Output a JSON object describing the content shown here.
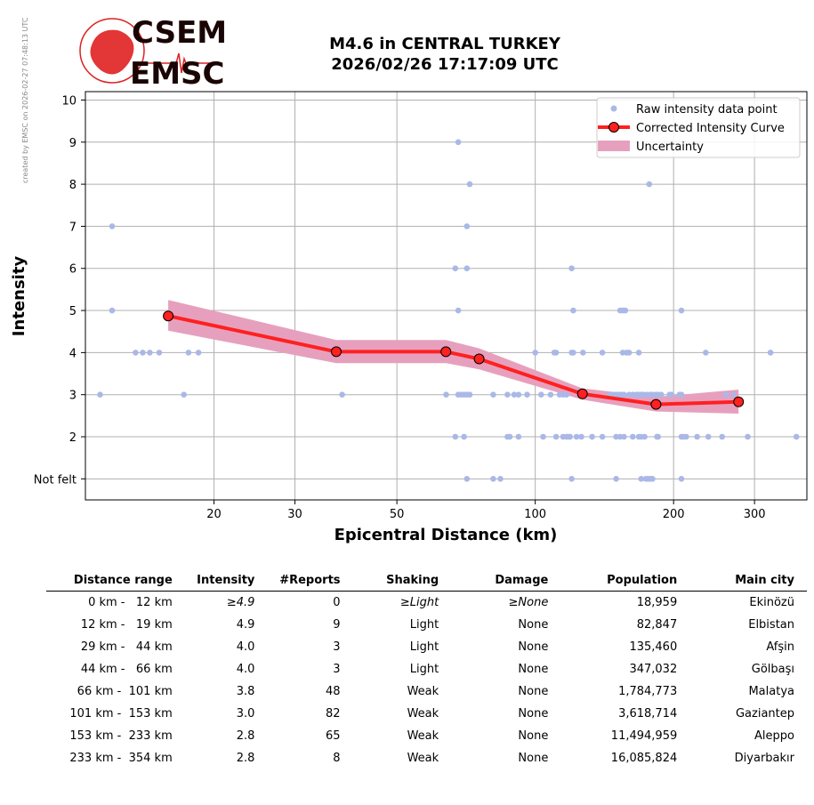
{
  "logo": {
    "line1": "CSEM",
    "line2": "EMSC"
  },
  "title": {
    "line1": "M4.6 in CENTRAL TURKEY",
    "line2": "2026/02/26 17:17:09 UTC"
  },
  "credit": "created by EMSC on 2026-02-27 07:48:13 UTC",
  "colors": {
    "raw": "#aab8e8",
    "curve": "#ff2020",
    "marker": "#ff2020",
    "uncertainty": "#e6a0bd",
    "grid": "#b0b0b0"
  },
  "chart_data": {
    "type": "scatter",
    "xlabel": "Epicentral Distance (km)",
    "ylabel": "Intensity",
    "xscale": "log",
    "xlim": [
      10.5,
      390
    ],
    "ylim": [
      0.5,
      10.2
    ],
    "xticks": [
      20,
      30,
      50,
      100,
      200,
      300
    ],
    "yticks": [
      {
        "value": 1,
        "label": "Not felt"
      },
      {
        "value": 2,
        "label": "2"
      },
      {
        "value": 3,
        "label": "3"
      },
      {
        "value": 4,
        "label": "4"
      },
      {
        "value": 5,
        "label": "5"
      },
      {
        "value": 6,
        "label": "6"
      },
      {
        "value": 7,
        "label": "7"
      },
      {
        "value": 8,
        "label": "8"
      },
      {
        "value": 9,
        "label": "9"
      },
      {
        "value": 10,
        "label": "10"
      }
    ],
    "grid": true,
    "legend_position": "top-right",
    "legend": {
      "raw": "Raw intensity data point",
      "curve": "Corrected Intensity Curve",
      "band": "Uncertainty"
    },
    "raw_points": [
      [
        11.3,
        3
      ],
      [
        12.0,
        7
      ],
      [
        12.0,
        5
      ],
      [
        13.5,
        4
      ],
      [
        14.0,
        4
      ],
      [
        14.5,
        4
      ],
      [
        15.2,
        4
      ],
      [
        17.2,
        3
      ],
      [
        17.6,
        4
      ],
      [
        18.5,
        4
      ],
      [
        38.0,
        3
      ],
      [
        64,
        3
      ],
      [
        67,
        2
      ],
      [
        68,
        9
      ],
      [
        68,
        5
      ],
      [
        67,
        6
      ],
      [
        68,
        3
      ],
      [
        69,
        3
      ],
      [
        70,
        3
      ],
      [
        71,
        3
      ],
      [
        72,
        3
      ],
      [
        70,
        2
      ],
      [
        71,
        7
      ],
      [
        71,
        6
      ],
      [
        72,
        8
      ],
      [
        71,
        1
      ],
      [
        81,
        3
      ],
      [
        81,
        1
      ],
      [
        84,
        1
      ],
      [
        87,
        3
      ],
      [
        87,
        2
      ],
      [
        88,
        2
      ],
      [
        90,
        3
      ],
      [
        92,
        3
      ],
      [
        92,
        2
      ],
      [
        96,
        3
      ],
      [
        100,
        4
      ],
      [
        103,
        3
      ],
      [
        104,
        2
      ],
      [
        108,
        3
      ],
      [
        110,
        4
      ],
      [
        111,
        4
      ],
      [
        111,
        2
      ],
      [
        113,
        3
      ],
      [
        115,
        3
      ],
      [
        117,
        3
      ],
      [
        115,
        2
      ],
      [
        117,
        2
      ],
      [
        118,
        2
      ],
      [
        119,
        2
      ],
      [
        120,
        4
      ],
      [
        121,
        4
      ],
      [
        120,
        6
      ],
      [
        121,
        5
      ],
      [
        120,
        1
      ],
      [
        123,
        2
      ],
      [
        125,
        3
      ],
      [
        126,
        2
      ],
      [
        127,
        4
      ],
      [
        133,
        2
      ],
      [
        140,
        4
      ],
      [
        140,
        2
      ],
      [
        145,
        3
      ],
      [
        148,
        3
      ],
      [
        150,
        3
      ],
      [
        152,
        3
      ],
      [
        154,
        3
      ],
      [
        156,
        3
      ],
      [
        150,
        2
      ],
      [
        153,
        2
      ],
      [
        156,
        2
      ],
      [
        153,
        5
      ],
      [
        155,
        5
      ],
      [
        157,
        5
      ],
      [
        155,
        4
      ],
      [
        158,
        4
      ],
      [
        160,
        4
      ],
      [
        150,
        1
      ],
      [
        160,
        3
      ],
      [
        163,
        3
      ],
      [
        166,
        3
      ],
      [
        168,
        3
      ],
      [
        170,
        3
      ],
      [
        172,
        3
      ],
      [
        175,
        3
      ],
      [
        178,
        3
      ],
      [
        163,
        2
      ],
      [
        168,
        2
      ],
      [
        170,
        2
      ],
      [
        173,
        2
      ],
      [
        168,
        4
      ],
      [
        170,
        1
      ],
      [
        174,
        1
      ],
      [
        176,
        1
      ],
      [
        178,
        1
      ],
      [
        180,
        1
      ],
      [
        177,
        8
      ],
      [
        180,
        3
      ],
      [
        183,
        3
      ],
      [
        185,
        3
      ],
      [
        184,
        2
      ],
      [
        185,
        2
      ],
      [
        188,
        3
      ],
      [
        196,
        3
      ],
      [
        198,
        3
      ],
      [
        206,
        3
      ],
      [
        208,
        3
      ],
      [
        208,
        5
      ],
      [
        208,
        2
      ],
      [
        210,
        2
      ],
      [
        213,
        2
      ],
      [
        208,
        1
      ],
      [
        225,
        2
      ],
      [
        235,
        4
      ],
      [
        238,
        2
      ],
      [
        255,
        2
      ],
      [
        260,
        3
      ],
      [
        270,
        3
      ],
      [
        290,
        2
      ],
      [
        325,
        4
      ],
      [
        370,
        2
      ]
    ],
    "curve": [
      [
        15.9,
        4.87
      ],
      [
        36.9,
        4.02
      ],
      [
        63.9,
        4.02
      ],
      [
        75.5,
        3.85
      ],
      [
        126.7,
        3.02
      ],
      [
        183.1,
        2.77
      ],
      [
        276.9,
        2.83
      ]
    ],
    "band": {
      "upper": [
        [
          15.9,
          5.25
        ],
        [
          36.9,
          4.3
        ],
        [
          63.9,
          4.3
        ],
        [
          75.5,
          4.1
        ],
        [
          126.7,
          3.15
        ],
        [
          183.1,
          2.95
        ],
        [
          276.9,
          3.12
        ]
      ],
      "lower": [
        [
          15.9,
          4.52
        ],
        [
          36.9,
          3.75
        ],
        [
          63.9,
          3.75
        ],
        [
          75.5,
          3.6
        ],
        [
          126.7,
          2.88
        ],
        [
          183.1,
          2.6
        ],
        [
          276.9,
          2.55
        ]
      ]
    }
  },
  "table": {
    "headers": [
      "Distance range",
      "Intensity",
      "#Reports",
      "Shaking",
      "Damage",
      "Population",
      "Main city"
    ],
    "rows": [
      [
        "0 km -   12 km",
        "≥4.9",
        "0",
        "≥Light",
        "≥None",
        "18,959",
        "Ekinözü"
      ],
      [
        "12 km -   19 km",
        "4.9",
        "9",
        "Light",
        "None",
        "82,847",
        "Elbistan"
      ],
      [
        "29 km -   44 km",
        "4.0",
        "3",
        "Light",
        "None",
        "135,460",
        "Afşin"
      ],
      [
        "44 km -   66 km",
        "4.0",
        "3",
        "Light",
        "None",
        "347,032",
        "Gölbaşı"
      ],
      [
        "66 km -  101 km",
        "3.8",
        "48",
        "Weak",
        "None",
        "1,784,773",
        "Malatya"
      ],
      [
        "101 km -  153 km",
        "3.0",
        "82",
        "Weak",
        "None",
        "3,618,714",
        "Gaziantep"
      ],
      [
        "153 km -  233 km",
        "2.8",
        "65",
        "Weak",
        "None",
        "11,494,959",
        "Aleppo"
      ],
      [
        "233 km -  354 km",
        "2.8",
        "8",
        "Weak",
        "None",
        "16,085,824",
        "Diyarbakır"
      ]
    ]
  }
}
